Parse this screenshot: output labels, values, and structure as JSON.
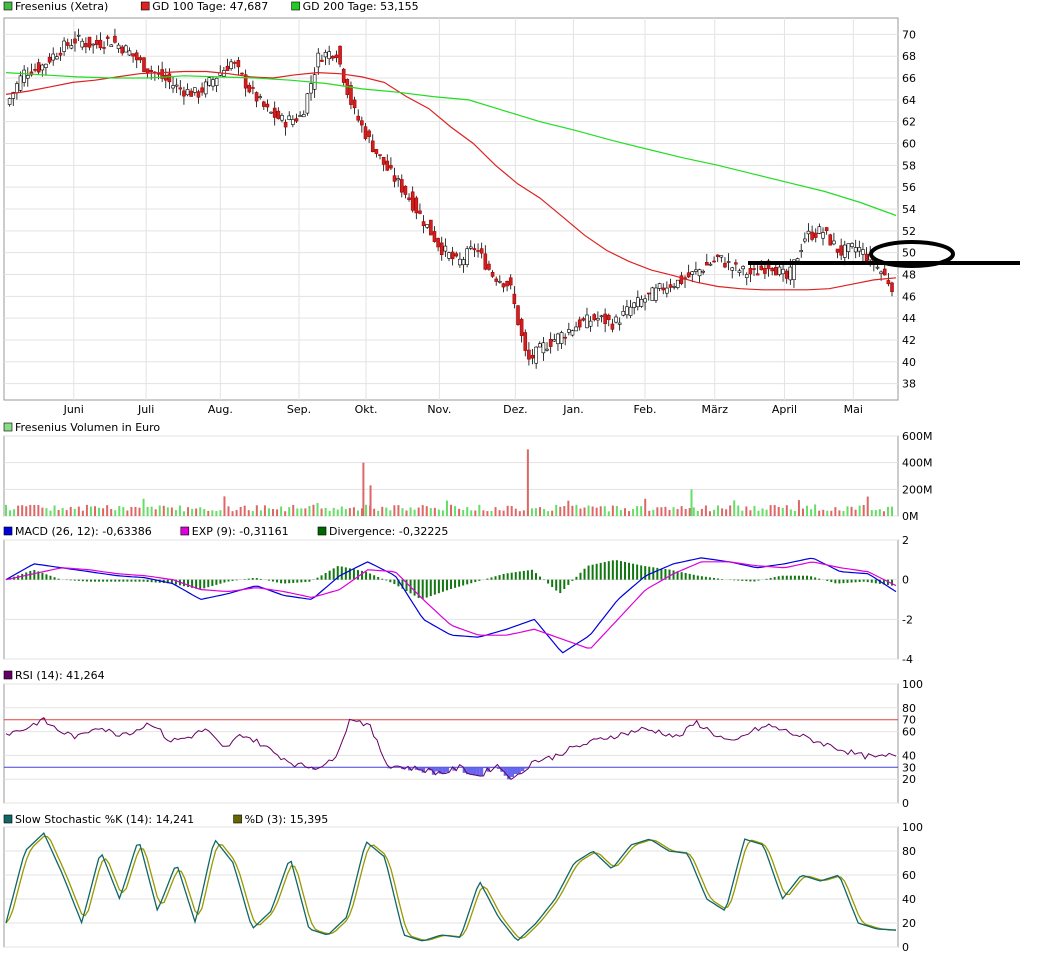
{
  "chart_data": [
    {
      "type": "candlestick",
      "legend": [
        {
          "label": "Fresenius (Xetra)",
          "color": "#44bb44"
        },
        {
          "label": "GD 100 Tage: 47,687",
          "color": "#dd2222"
        },
        {
          "label": "GD 200 Tage: 53,155",
          "color": "#22cc22"
        }
      ],
      "months": [
        "Juni",
        "Juli",
        "Aug.",
        "Sep.",
        "Okt.",
        "Nov.",
        "Dez.",
        "Jan.",
        "Feb.",
        "März",
        "April",
        "Mai"
      ],
      "yticks": [
        "70",
        "68",
        "66",
        "64",
        "62",
        "60",
        "58",
        "56",
        "54",
        "52",
        "50",
        "48",
        "46",
        "44",
        "42",
        "40",
        "38"
      ],
      "ylim": [
        36.5,
        71.5
      ],
      "x": [
        0,
        20,
        40,
        60,
        80,
        100,
        110,
        120,
        130,
        140,
        146,
        150,
        160,
        170,
        180,
        190,
        195,
        200,
        205,
        210,
        220,
        230,
        240,
        250,
        258,
        262,
        270,
        280,
        290,
        300,
        310,
        320,
        330,
        340,
        345,
        350,
        360,
        365,
        370,
        380,
        390,
        395,
        400,
        410,
        420,
        430,
        440,
        450,
        460,
        470,
        480,
        490
      ],
      "close": [
        63.5,
        66.5,
        67.0,
        68.5,
        69.5,
        69.0,
        69.5,
        68.5,
        67.0,
        66.0,
        65.0,
        64.5,
        66.0,
        67.5,
        65.0,
        63.0,
        62.0,
        62.5,
        68.0,
        68.5,
        63.0,
        60.0,
        57.5,
        55.5,
        53.0,
        50.5,
        49.0,
        50.5,
        48.0,
        47.0,
        40.0,
        41.5,
        42.5,
        43.5,
        44.0,
        43.5,
        45.0,
        46.0,
        47.0,
        47.5,
        48.5,
        49.5,
        48.5,
        48.0,
        49.0,
        47.5,
        51.5,
        52.0,
        50.0,
        50.5,
        49.0,
        47.0
      ],
      "ma100": [
        64.5,
        64.8,
        65.2,
        65.6,
        65.8,
        66.1,
        66.4,
        66.5,
        66.6,
        66.6,
        66.4,
        66.1,
        66.0,
        66.3,
        66.5,
        66.4,
        66.1,
        65.6,
        64.3,
        63.2,
        61.5,
        60.0,
        58.0,
        56.3,
        55.0,
        53.3,
        51.6,
        50.2,
        49.2,
        48.4,
        47.9,
        47.3,
        46.9,
        46.7,
        46.6,
        46.6,
        46.6,
        46.7,
        47.1,
        47.5,
        47.7
      ],
      "ma200": [
        66.5,
        66.3,
        66.1,
        66.0,
        66.0,
        66.2,
        66.1,
        66.0,
        65.8,
        65.5,
        65.0,
        64.7,
        64.3,
        64.0,
        63.0,
        62.0,
        61.2,
        60.3,
        59.5,
        58.7,
        58.0,
        57.2,
        56.4,
        55.6,
        54.6,
        53.4
      ]
    },
    {
      "type": "bar",
      "legend": [
        {
          "label": "Fresenius Volumen in Euro",
          "color": "#88dd88"
        }
      ],
      "yticks": [
        "600M",
        "400M",
        "200M",
        "0M"
      ],
      "ylim": [
        0,
        600
      ],
      "spikes": [
        {
          "x": 0.402,
          "value": 400
        },
        {
          "x": 0.586,
          "value": 500
        },
        {
          "x": 0.41,
          "value": 230
        },
        {
          "x": 0.769,
          "value": 200
        }
      ],
      "baseline": 100
    },
    {
      "type": "line",
      "legend": [
        {
          "label": "MACD (26, 12): -0,63386",
          "color": "#0000dd"
        },
        {
          "label": "EXP (9): -0,31161",
          "color": "#dd00dd"
        },
        {
          "label": "Divergence: -0,32225",
          "color": "#006600"
        }
      ],
      "yticks": [
        "2",
        "0",
        "-2",
        "-4"
      ],
      "ylim": [
        -4,
        2
      ],
      "macd": [
        0,
        0.8,
        0.6,
        0.4,
        0.2,
        0.1,
        -0.2,
        -1.0,
        -0.7,
        -0.3,
        -0.8,
        -1.0,
        0.2,
        0.9,
        0.2,
        -2.0,
        -2.8,
        -2.9,
        -2.5,
        -2.0,
        -3.7,
        -2.8,
        -1.0,
        0.2,
        0.8,
        1.1,
        0.9,
        0.6,
        0.8,
        1.1,
        0.4,
        0.3,
        -0.6
      ],
      "exp": [
        0,
        0.3,
        0.6,
        0.5,
        0.3,
        0.2,
        0,
        -0.5,
        -0.6,
        -0.4,
        -0.6,
        -0.9,
        -0.5,
        0.5,
        0.4,
        -1.0,
        -2.3,
        -2.8,
        -2.8,
        -2.5,
        -3.0,
        -3.5,
        -2.0,
        -0.5,
        0.3,
        0.9,
        0.9,
        0.7,
        0.6,
        0.9,
        0.6,
        0.4,
        -0.3
      ]
    },
    {
      "type": "line",
      "legend": [
        {
          "label": "RSI (14): 41,264",
          "color": "#660066"
        }
      ],
      "yticks": [
        "100",
        "80",
        "70",
        "60",
        "40",
        "30",
        "20",
        "0"
      ],
      "ylim": [
        0,
        100
      ],
      "levels": [
        70,
        30
      ],
      "rsi": [
        58,
        62,
        70,
        60,
        55,
        65,
        58,
        60,
        68,
        52,
        55,
        62,
        45,
        58,
        50,
        40,
        32,
        30,
        35,
        72,
        65,
        32,
        30,
        28,
        25,
        30,
        22,
        32,
        20,
        35,
        38,
        45,
        50,
        55,
        58,
        62,
        60,
        55,
        68,
        58,
        50,
        60,
        65,
        60,
        55,
        50,
        45,
        40,
        38,
        41
      ]
    },
    {
      "type": "line",
      "legend": [
        {
          "label": "Slow Stochastic %K (14): 14,241",
          "color": "#116666"
        },
        {
          "label": "%D (3): 15,395",
          "color": "#666600"
        }
      ],
      "yticks": [
        "100",
        "80",
        "60",
        "40",
        "20",
        "0"
      ],
      "ylim": [
        0,
        100
      ],
      "k": [
        20,
        80,
        95,
        60,
        20,
        80,
        40,
        90,
        30,
        70,
        20,
        90,
        70,
        15,
        30,
        75,
        15,
        10,
        25,
        88,
        75,
        10,
        5,
        10,
        8,
        55,
        25,
        5,
        20,
        40,
        70,
        80,
        65,
        85,
        90,
        80,
        78,
        40,
        30,
        90,
        85,
        40,
        60,
        55,
        60,
        20,
        15,
        14
      ]
    }
  ]
}
